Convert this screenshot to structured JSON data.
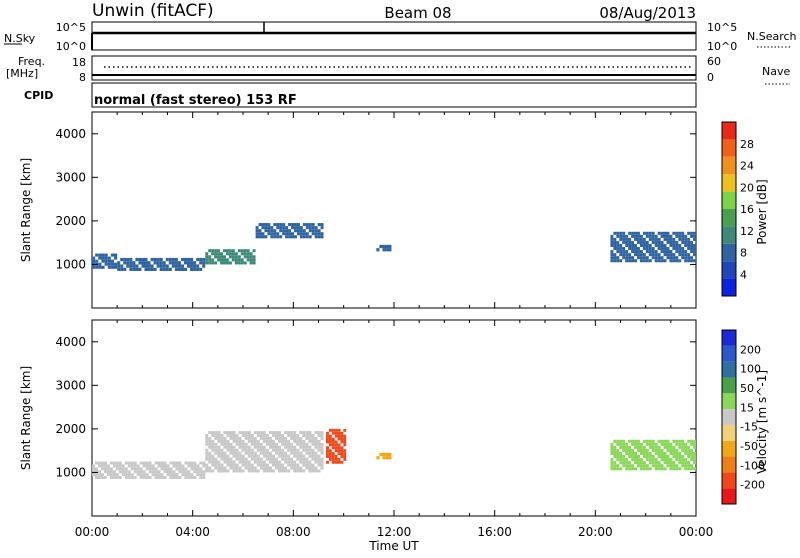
{
  "header": {
    "station": "Unwin (fitACF)",
    "beam": "Beam 08",
    "date": "08/Aug/2013"
  },
  "meta_panels": {
    "noise": {
      "left_label": "N.Sky",
      "left_ticks": [
        "10^5",
        "10^0"
      ],
      "right_ticks": [
        "10^5",
        "10^0"
      ],
      "right_label": "N.Search"
    },
    "freq": {
      "left_label_line1": "Freq.",
      "left_label_line2": "[MHz]",
      "left_ticks": [
        "18",
        "8"
      ],
      "right_ticks": [
        "60",
        "0"
      ],
      "right_label": "Nave"
    },
    "cpid": {
      "label": "CPID",
      "text": "normal (fast stereo) 153 RF"
    }
  },
  "colors": {
    "power_scale": [
      "#0b22e0",
      "#2045b8",
      "#2f64a0",
      "#3e8a78",
      "#4aa050",
      "#7bd34a",
      "#f0c020",
      "#f09020",
      "#f06018",
      "#e82818"
    ],
    "velocity_scale": [
      "#e81818",
      "#f04818",
      "#f07e18",
      "#f0a818",
      "#f0d078",
      "#c8c8c8",
      "#8ad85a",
      "#48a048",
      "#3070a0",
      "#2a58c8",
      "#1a28d8"
    ]
  },
  "chart_data": [
    {
      "type": "heatmap",
      "name": "power",
      "title": "",
      "xlabel": "",
      "ylabel": "Slant Range [km]",
      "xlim": [
        "00:00",
        "24:00"
      ],
      "ylim": [
        0,
        4500
      ],
      "yticks": [
        "1000",
        "2000",
        "3000",
        "4000"
      ],
      "colorbar_label": "Power [dB]",
      "colorbar_ticks": [
        "4",
        "8",
        "12",
        "16",
        "20",
        "24",
        "28"
      ],
      "echo_regions": [
        {
          "t_start": 0.0,
          "t_end": 1.0,
          "range_low": 900,
          "range_high": 1250,
          "level": "8"
        },
        {
          "t_start": 1.0,
          "t_end": 4.5,
          "range_low": 850,
          "range_high": 1150,
          "level": "8"
        },
        {
          "t_start": 4.5,
          "t_end": 6.5,
          "range_low": 1000,
          "range_high": 1350,
          "level": "12"
        },
        {
          "t_start": 6.5,
          "t_end": 9.2,
          "range_low": 1600,
          "range_high": 1950,
          "level": "8"
        },
        {
          "t_start": 11.3,
          "t_end": 11.9,
          "range_low": 1300,
          "range_high": 1450,
          "level": "8"
        },
        {
          "t_start": 20.6,
          "t_end": 24.0,
          "range_low": 1050,
          "range_high": 1750,
          "level": "8"
        }
      ]
    },
    {
      "type": "heatmap",
      "name": "velocity",
      "title": "",
      "xlabel": "Time UT",
      "ylabel": "Slant Range [km]",
      "xlim": [
        "00:00",
        "24:00"
      ],
      "ylim": [
        0,
        4500
      ],
      "xticks": [
        "00:00",
        "04:00",
        "08:00",
        "12:00",
        "16:00",
        "20:00",
        "00:00"
      ],
      "yticks": [
        "1000",
        "2000",
        "3000",
        "4000"
      ],
      "colorbar_label": "Velocity [m s^-1]",
      "colorbar_ticks": [
        "200",
        "100",
        "50",
        "15",
        "-15",
        "-50",
        "-100",
        "-200"
      ],
      "echo_regions": [
        {
          "t_start": 0.0,
          "t_end": 4.5,
          "range_low": 850,
          "range_high": 1250,
          "level": "-15..15"
        },
        {
          "t_start": 4.5,
          "t_end": 9.2,
          "range_low": 1000,
          "range_high": 1950,
          "level": "-15..15"
        },
        {
          "t_start": 9.3,
          "t_end": 10.1,
          "range_low": 1200,
          "range_high": 2000,
          "level": "-100"
        },
        {
          "t_start": 11.3,
          "t_end": 11.9,
          "range_low": 1300,
          "range_high": 1450,
          "level": "-50"
        },
        {
          "t_start": 20.6,
          "t_end": 24.0,
          "range_low": 1050,
          "range_high": 1750,
          "level": "15..50"
        }
      ]
    }
  ]
}
